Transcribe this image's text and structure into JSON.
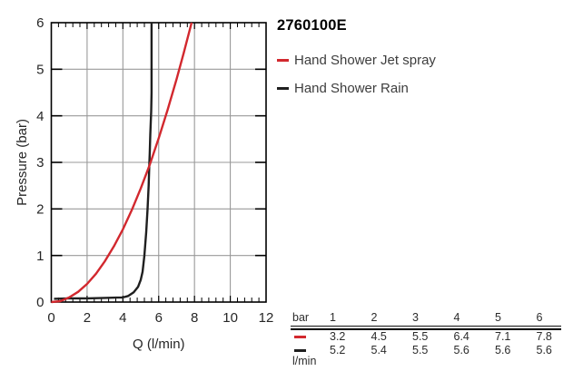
{
  "product_code": "2760100E",
  "legend": {
    "items": [
      {
        "label": "Hand Shower Jet spray",
        "color": "#d2282e"
      },
      {
        "label": "Hand Shower Rain",
        "color": "#1f1f1f"
      }
    ]
  },
  "chart_data": {
    "type": "line",
    "title": "2760100E",
    "xlabel": "Q (l/min)",
    "ylabel": "Pressure (bar)",
    "xlim": [
      0,
      12
    ],
    "ylim": [
      0,
      6
    ],
    "x_ticks": [
      0,
      2,
      4,
      6,
      8,
      10,
      12
    ],
    "y_ticks": [
      0,
      1,
      2,
      3,
      4,
      5,
      6
    ],
    "x_minor_step": 0.4,
    "grid": true,
    "legend_position": "right-outside",
    "colors": {
      "grid": "#999999",
      "axis": "#000000",
      "tick_label": "#262626"
    },
    "series": [
      {
        "name": "Hand Shower Jet spray",
        "color": "#d2282e",
        "pressure_bar": [
          1,
          2,
          3,
          4,
          5,
          6
        ],
        "flow_l_min": [
          3.2,
          4.5,
          5.5,
          6.4,
          7.1,
          7.8
        ],
        "curve": [
          [
            0,
            0
          ],
          [
            0.5,
            0.02
          ],
          [
            1,
            0.1
          ],
          [
            1.5,
            0.22
          ],
          [
            2,
            0.39
          ],
          [
            2.5,
            0.61
          ],
          [
            3,
            0.88
          ],
          [
            3.5,
            1.2
          ],
          [
            4,
            1.56
          ],
          [
            4.5,
            1.98
          ],
          [
            5,
            2.44
          ],
          [
            5.5,
            2.95
          ],
          [
            6,
            3.52
          ],
          [
            6.5,
            4.13
          ],
          [
            7,
            4.79
          ],
          [
            7.4,
            5.35
          ],
          [
            7.84,
            6
          ]
        ]
      },
      {
        "name": "Hand Shower Rain",
        "color": "#1f1f1f",
        "pressure_bar": [
          1,
          2,
          3,
          4,
          5,
          6
        ],
        "flow_l_min": [
          5.2,
          5.4,
          5.5,
          5.6,
          5.6,
          5.6
        ],
        "curve": [
          [
            0.15,
            0.07
          ],
          [
            1,
            0.08
          ],
          [
            2,
            0.08
          ],
          [
            3,
            0.09
          ],
          [
            4,
            0.1
          ],
          [
            4.3,
            0.13
          ],
          [
            4.6,
            0.21
          ],
          [
            4.85,
            0.33
          ],
          [
            5,
            0.48
          ],
          [
            5.1,
            0.65
          ],
          [
            5.2,
            1
          ],
          [
            5.3,
            1.5
          ],
          [
            5.38,
            2
          ],
          [
            5.44,
            2.5
          ],
          [
            5.48,
            3
          ],
          [
            5.5,
            3.2
          ],
          [
            5.53,
            3.6
          ],
          [
            5.58,
            4.1
          ],
          [
            5.6,
            4.5
          ],
          [
            5.6,
            6
          ]
        ]
      }
    ]
  },
  "table": {
    "unit_header": "bar",
    "pressures": [
      "1",
      "2",
      "3",
      "4",
      "5",
      "6"
    ],
    "rows": [
      {
        "name": "Hand Shower Jet spray",
        "color": "#d2282e",
        "values": [
          "3.2",
          "4.5",
          "5.5",
          "6.4",
          "7.1",
          "7.8"
        ]
      },
      {
        "name": "Hand Shower Rain",
        "color": "#1f1f1f",
        "values": [
          "5.2",
          "5.4",
          "5.5",
          "5.6",
          "5.6",
          "5.6"
        ]
      }
    ],
    "unit_label": "l/min"
  }
}
